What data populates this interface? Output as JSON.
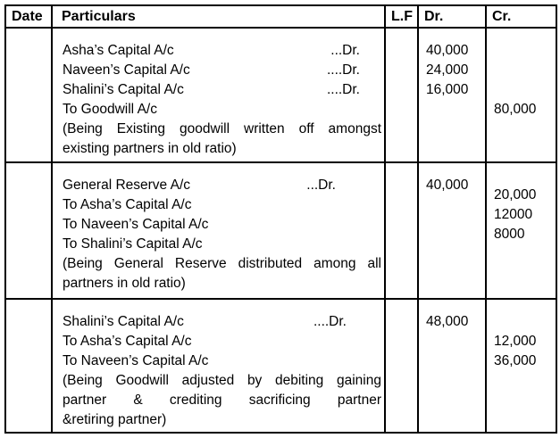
{
  "table": {
    "headers": {
      "date": "Date",
      "particulars": "Particulars",
      "lf": "L.F",
      "dr": "Dr.",
      "cr": "Cr."
    },
    "blocks": [
      {
        "entries": [
          {
            "text": "Asha’s Capital A/c",
            "suffix": "...Dr."
          },
          {
            "text": "Naveen’s Capital A/c",
            "suffix": "....Dr."
          },
          {
            "text": "Shalini’s Capital A/c",
            "suffix": "....Dr."
          },
          {
            "text": "To Goodwill A/c",
            "suffix": ""
          }
        ],
        "narration": [
          "(Being Existing goodwill written off amongst",
          "existing partners in old ratio)"
        ],
        "dr_amounts": [
          {
            "line": 0,
            "value": "40,000"
          },
          {
            "line": 1,
            "value": "24,000"
          },
          {
            "line": 2,
            "value": "16,000"
          }
        ],
        "cr_amounts": [
          {
            "line": 3,
            "value": "80,000"
          }
        ]
      },
      {
        "entries": [
          {
            "text": "General Reserve A/c",
            "suffix": "...Dr."
          },
          {
            "text": "To Asha’s Capital A/c",
            "suffix": ""
          },
          {
            "text": "To Naveen’s Capital A/c",
            "suffix": ""
          },
          {
            "text": "To Shalini’s Capital A/c",
            "suffix": ""
          }
        ],
        "narration": [
          "(Being General Reserve distributed among all",
          "partners in old ratio)"
        ],
        "dr_amounts": [
          {
            "line": 0,
            "value": "40,000"
          }
        ],
        "cr_amounts": [
          {
            "line": 0.5,
            "value": "20,000"
          },
          {
            "line": 1.5,
            "value": "12000"
          },
          {
            "line": 2.5,
            "value": "8000"
          }
        ]
      },
      {
        "entries": [
          {
            "text": "Shalini’s Capital A/c",
            "suffix": "....Dr."
          },
          {
            "text": "To Asha’s Capital A/c",
            "suffix": ""
          },
          {
            "text": "To Naveen’s Capital A/c",
            "suffix": ""
          }
        ],
        "narration": [
          "(Being Goodwill adjusted by debiting gaining",
          "partner & crediting sacrificing partner",
          "&retiring partner)"
        ],
        "dr_amounts": [
          {
            "line": 0,
            "value": "48,000"
          }
        ],
        "cr_amounts": [
          {
            "line": 1,
            "value": "12,000"
          },
          {
            "line": 2,
            "value": "36,000"
          }
        ]
      }
    ]
  }
}
